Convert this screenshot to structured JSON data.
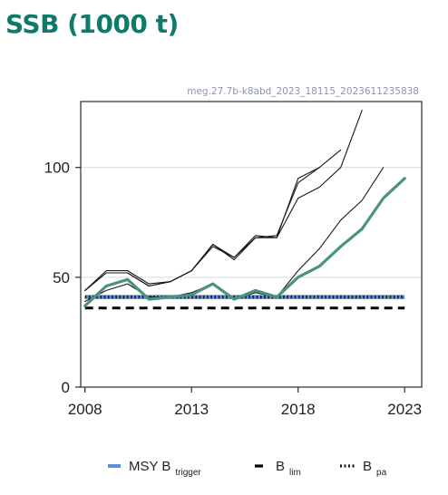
{
  "header": {
    "title": "SSB (1000 t)"
  },
  "chart_data": {
    "type": "line",
    "title": "SSB (1000 t)",
    "stamp": "meg.27.7b-k8abd_2023_18115_2023611235838",
    "xlabel": "",
    "ylabel": "",
    "xlim": [
      2007.8,
      2023.8
    ],
    "ylim": [
      0,
      130
    ],
    "x_ticks": [
      2008,
      2013,
      2018,
      2023
    ],
    "y_ticks": [
      0,
      50,
      100
    ],
    "grid": "horizontal",
    "colors": {
      "current_assessment": "#4a937e",
      "previous_assessments": "#1a1a1a",
      "msy_btrigger": "#5b8fe0",
      "blim": "#000000",
      "bpa": "#1a1a1a",
      "grid": "#d9d9d9"
    },
    "series": [
      {
        "role": "current-assessment",
        "x": [
          2008,
          2009,
          2010,
          2011,
          2012,
          2013,
          2014,
          2015,
          2016,
          2017,
          2018,
          2019,
          2020,
          2021,
          2022,
          2023
        ],
        "y": [
          37,
          46,
          49,
          40,
          41,
          42,
          47,
          40,
          44,
          41,
          50,
          55,
          64,
          72,
          86,
          95
        ]
      },
      {
        "role": "previous-assessment",
        "x": [
          2008,
          2009,
          2010,
          2011,
          2012,
          2013,
          2014,
          2015,
          2016,
          2017,
          2018,
          2019,
          2020,
          2021,
          2022
        ],
        "y": [
          39,
          44,
          47,
          41,
          41,
          43,
          47,
          40,
          43,
          41,
          53,
          63,
          76,
          85,
          100
        ]
      },
      {
        "role": "previous-assessment",
        "x": [
          2008,
          2009,
          2010,
          2011,
          2012,
          2013,
          2014,
          2015,
          2016,
          2017,
          2018,
          2019,
          2020,
          2021
        ],
        "y": [
          44,
          53,
          53,
          47,
          48,
          53,
          65,
          59,
          69,
          68,
          86,
          91,
          100,
          126
        ]
      },
      {
        "role": "previous-assessment",
        "x": [
          2008,
          2009,
          2010,
          2011,
          2012,
          2013,
          2014,
          2015,
          2016,
          2017,
          2018,
          2019,
          2020
        ],
        "y": [
          44,
          52,
          52,
          46,
          48,
          53,
          64,
          59,
          68,
          69,
          93,
          100,
          108
        ]
      },
      {
        "role": "previous-assessment",
        "x": [
          2008,
          2009,
          2010,
          2011,
          2012,
          2013,
          2014,
          2015,
          2016,
          2017,
          2018,
          2019
        ],
        "y": [
          44,
          52,
          52,
          46,
          48,
          53,
          65,
          58,
          68,
          68,
          95,
          100
        ]
      }
    ],
    "reference_lines": [
      {
        "key": "msy_btrigger",
        "value": 41,
        "style": "solid"
      },
      {
        "key": "bpa",
        "value": 41,
        "style": "dotted"
      },
      {
        "key": "blim",
        "value": 36,
        "style": "dashed"
      }
    ],
    "legend": {
      "placement": "bottom",
      "items": [
        {
          "key": "msy_btrigger",
          "label": "MSY B",
          "sub": "trigger",
          "style": "solid"
        },
        {
          "key": "blim",
          "label": "B",
          "sub": "lim",
          "style": "dashed"
        },
        {
          "key": "bpa",
          "label": "B",
          "sub": "pa",
          "style": "dotted"
        }
      ]
    }
  }
}
